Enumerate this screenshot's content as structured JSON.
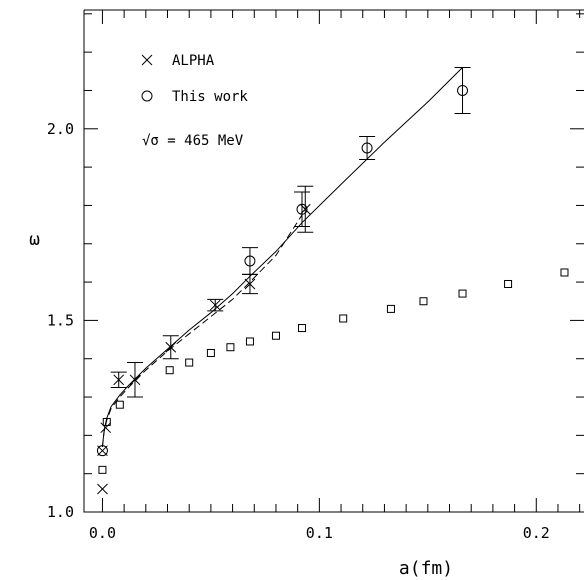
{
  "chart_data": {
    "type": "scatter",
    "xlabel": "a(fm)",
    "ylabel": "ω",
    "xlim": [
      -0.0085,
      0.222
    ],
    "ylim": [
      1.0,
      2.31
    ],
    "x_ticks": [
      0.0,
      0.1,
      0.2
    ],
    "x_tick_labels": [
      "0.0",
      "0.1",
      "0.2"
    ],
    "y_ticks": [
      1.0,
      1.5,
      2.0
    ],
    "y_tick_labels": [
      "1.0",
      "1.5",
      "2.0"
    ],
    "grid": false,
    "legend_position": "top-left",
    "legend": [
      {
        "symbol": "cross",
        "label": "ALPHA"
      },
      {
        "symbol": "circle",
        "label": "This work"
      }
    ],
    "annotation": "√σ = 465 MeV",
    "series": [
      {
        "name": "ALPHA",
        "marker": "cross",
        "points": [
          {
            "x": 0.0,
            "y": 1.06
          },
          {
            "x": 0.0,
            "y": 1.16
          },
          {
            "x": 0.0015,
            "y": 1.22
          },
          {
            "x": 0.0075,
            "y": 1.345,
            "err": 0.02
          },
          {
            "x": 0.015,
            "y": 1.345,
            "err": 0.045
          },
          {
            "x": 0.0315,
            "y": 1.43,
            "err": 0.03
          },
          {
            "x": 0.052,
            "y": 1.54,
            "err": 0.015
          },
          {
            "x": 0.068,
            "y": 1.595,
            "err": 0.025
          },
          {
            "x": 0.0935,
            "y": 1.79,
            "err": 0.06
          }
        ]
      },
      {
        "name": "This work",
        "marker": "circle",
        "points": [
          {
            "x": 0.0,
            "y": 1.16
          },
          {
            "x": 0.068,
            "y": 1.655,
            "err": 0.035
          },
          {
            "x": 0.092,
            "y": 1.79,
            "err": 0.045
          },
          {
            "x": 0.122,
            "y": 1.95,
            "err": 0.03
          },
          {
            "x": 0.166,
            "y": 2.1,
            "err": 0.06
          }
        ]
      },
      {
        "marker": "square",
        "points": [
          {
            "x": 0.0,
            "y": 1.11
          },
          {
            "x": 0.002,
            "y": 1.235
          },
          {
            "x": 0.008,
            "y": 1.28
          },
          {
            "x": 0.031,
            "y": 1.37
          },
          {
            "x": 0.04,
            "y": 1.39
          },
          {
            "x": 0.05,
            "y": 1.415
          },
          {
            "x": 0.059,
            "y": 1.43
          },
          {
            "x": 0.068,
            "y": 1.445
          },
          {
            "x": 0.08,
            "y": 1.46
          },
          {
            "x": 0.092,
            "y": 1.48
          },
          {
            "x": 0.111,
            "y": 1.505
          },
          {
            "x": 0.133,
            "y": 1.53
          },
          {
            "x": 0.148,
            "y": 1.55
          },
          {
            "x": 0.166,
            "y": 1.57
          },
          {
            "x": 0.187,
            "y": 1.595
          },
          {
            "x": 0.213,
            "y": 1.625
          }
        ]
      }
    ],
    "curves": [
      {
        "style": "solid",
        "x": [
          0.0,
          0.0008,
          0.002,
          0.004,
          0.008,
          0.012,
          0.02,
          0.03,
          0.04,
          0.05,
          0.06,
          0.068,
          0.08,
          0.092,
          0.11,
          0.13,
          0.15,
          0.166
        ],
        "y": [
          1.17,
          1.215,
          1.245,
          1.275,
          1.305,
          1.33,
          1.375,
          1.425,
          1.475,
          1.52,
          1.57,
          1.615,
          1.68,
          1.755,
          1.855,
          1.965,
          2.07,
          2.16
        ]
      },
      {
        "style": "dashed",
        "x": [
          0.0,
          0.0008,
          0.002,
          0.004,
          0.008,
          0.012,
          0.02,
          0.03,
          0.04,
          0.05,
          0.06,
          0.068,
          0.08,
          0.092
        ],
        "y": [
          1.17,
          1.21,
          1.24,
          1.27,
          1.3,
          1.325,
          1.37,
          1.42,
          1.465,
          1.51,
          1.555,
          1.6,
          1.67,
          1.775
        ]
      }
    ]
  }
}
